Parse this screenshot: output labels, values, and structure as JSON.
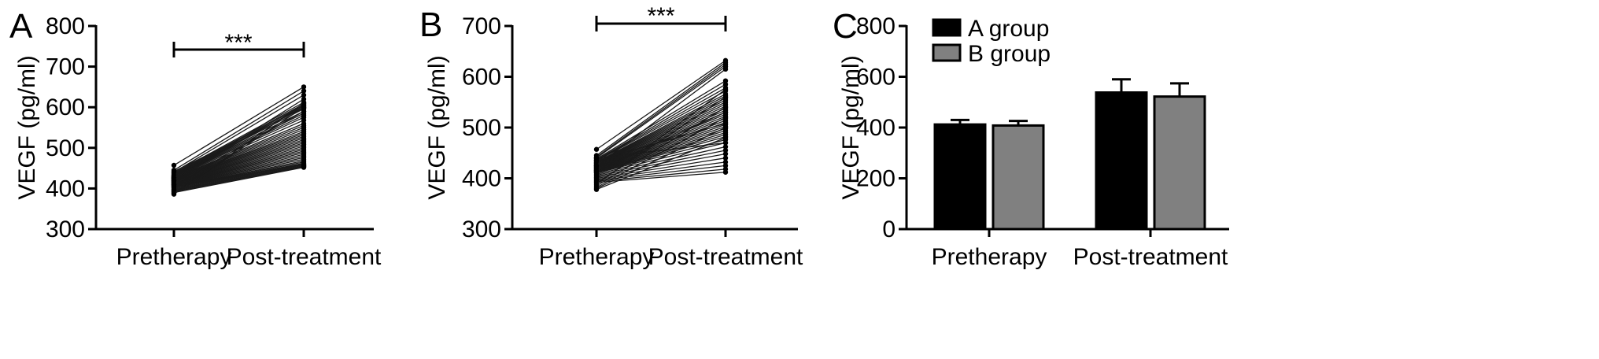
{
  "panels": [
    {
      "letter": "A",
      "chart_data": {
        "type": "line",
        "subtype": "paired before-after",
        "categories": [
          "Pretherapy",
          "Post-treatment"
        ],
        "ylabel": "VEGF (pg/ml)",
        "ylim": [
          300,
          800
        ],
        "yticks": [
          300,
          400,
          500,
          600,
          700,
          800
        ],
        "significance": "***",
        "series": [
          {
            "values": [
              457,
              650
            ]
          },
          {
            "values": [
              445,
              640
            ]
          },
          {
            "values": [
              440,
              630
            ]
          },
          {
            "values": [
              438,
              612
            ]
          },
          {
            "values": [
              436,
              608
            ]
          },
          {
            "values": [
              434,
              605
            ]
          },
          {
            "values": [
              433,
              600
            ]
          },
          {
            "values": [
              432,
              596
            ]
          },
          {
            "values": [
              431,
              590
            ]
          },
          {
            "values": [
              430,
              585
            ]
          },
          {
            "values": [
              429,
              580
            ]
          },
          {
            "values": [
              428,
              575
            ]
          },
          {
            "values": [
              427,
              568
            ]
          },
          {
            "values": [
              426,
              560
            ]
          },
          {
            "values": [
              425,
              555
            ]
          },
          {
            "values": [
              424,
              550
            ]
          },
          {
            "values": [
              423,
              545
            ]
          },
          {
            "values": [
              422,
              540
            ]
          },
          {
            "values": [
              421,
              536
            ]
          },
          {
            "values": [
              420,
              532
            ]
          },
          {
            "values": [
              419,
              528
            ]
          },
          {
            "values": [
              418,
              524
            ]
          },
          {
            "values": [
              417,
              520
            ]
          },
          {
            "values": [
              416,
              516
            ]
          },
          {
            "values": [
              415,
              512
            ]
          },
          {
            "values": [
              414,
              508
            ]
          },
          {
            "values": [
              413,
              504
            ]
          },
          {
            "values": [
              412,
              500
            ]
          },
          {
            "values": [
              411,
              496
            ]
          },
          {
            "values": [
              410,
              492
            ]
          },
          {
            "values": [
              409,
              488
            ]
          },
          {
            "values": [
              408,
              484
            ]
          },
          {
            "values": [
              407,
              480
            ]
          },
          {
            "values": [
              406,
              476
            ]
          },
          {
            "values": [
              405,
              472
            ]
          },
          {
            "values": [
              404,
              468
            ]
          },
          {
            "values": [
              403,
              465
            ]
          },
          {
            "values": [
              402,
              462
            ]
          },
          {
            "values": [
              400,
              460
            ]
          },
          {
            "values": [
              398,
              458
            ]
          },
          {
            "values": [
              396,
              456
            ]
          },
          {
            "values": [
              394,
              455
            ]
          },
          {
            "values": [
              392,
              453
            ]
          },
          {
            "values": [
              390,
              452
            ]
          },
          {
            "values": [
              388,
              600
            ]
          },
          {
            "values": [
              386,
              610
            ]
          },
          {
            "values": [
              425,
              603
            ]
          },
          {
            "values": [
              442,
              598
            ]
          },
          {
            "values": [
              420,
              620
            ]
          },
          {
            "values": [
              410,
              590
            ]
          }
        ]
      }
    },
    {
      "letter": "B",
      "chart_data": {
        "type": "line",
        "subtype": "paired before-after",
        "categories": [
          "Pretherapy",
          "Post-treatment"
        ],
        "ylabel": "VEGF (pg/ml)",
        "ylim": [
          300,
          700
        ],
        "yticks": [
          300,
          400,
          500,
          600,
          700
        ],
        "significance": "***",
        "series": [
          {
            "values": [
              457,
              632
            ]
          },
          {
            "values": [
              445,
              628
            ]
          },
          {
            "values": [
              442,
              624
            ]
          },
          {
            "values": [
              440,
              620
            ]
          },
          {
            "values": [
              438,
              592
            ]
          },
          {
            "values": [
              436,
              585
            ]
          },
          {
            "values": [
              435,
              578
            ]
          },
          {
            "values": [
              434,
              572
            ]
          },
          {
            "values": [
              432,
              566
            ]
          },
          {
            "values": [
              431,
              562
            ]
          },
          {
            "values": [
              430,
              558
            ]
          },
          {
            "values": [
              429,
              554
            ]
          },
          {
            "values": [
              428,
              550
            ]
          },
          {
            "values": [
              427,
              546
            ]
          },
          {
            "values": [
              426,
              542
            ]
          },
          {
            "values": [
              425,
              538
            ]
          },
          {
            "values": [
              424,
              534
            ]
          },
          {
            "values": [
              423,
              530
            ]
          },
          {
            "values": [
              422,
              526
            ]
          },
          {
            "values": [
              421,
              522
            ]
          },
          {
            "values": [
              420,
              518
            ]
          },
          {
            "values": [
              419,
              514
            ]
          },
          {
            "values": [
              418,
              510
            ]
          },
          {
            "values": [
              417,
              506
            ]
          },
          {
            "values": [
              416,
              502
            ]
          },
          {
            "values": [
              415,
              498
            ]
          },
          {
            "values": [
              414,
              494
            ]
          },
          {
            "values": [
              413,
              490
            ]
          },
          {
            "values": [
              412,
              486
            ]
          },
          {
            "values": [
              411,
              482
            ]
          },
          {
            "values": [
              410,
              476
            ]
          },
          {
            "values": [
              408,
              470
            ]
          },
          {
            "values": [
              406,
              462
            ]
          },
          {
            "values": [
              404,
              455
            ]
          },
          {
            "values": [
              402,
              448
            ]
          },
          {
            "values": [
              400,
              440
            ]
          },
          {
            "values": [
              398,
              432
            ]
          },
          {
            "values": [
              396,
              425
            ]
          },
          {
            "values": [
              394,
              418
            ]
          },
          {
            "values": [
              392,
              412
            ]
          },
          {
            "values": [
              390,
              560
            ]
          },
          {
            "values": [
              388,
              575
            ]
          },
          {
            "values": [
              385,
              540
            ]
          },
          {
            "values": [
              382,
              520
            ]
          },
          {
            "values": [
              380,
              500
            ]
          },
          {
            "values": [
              378,
              480
            ]
          },
          {
            "values": [
              440,
              470
            ]
          },
          {
            "values": [
              435,
              508
            ]
          },
          {
            "values": [
              425,
              615
            ]
          },
          {
            "values": [
              415,
              530
            ]
          }
        ]
      }
    },
    {
      "letter": "C",
      "chart_data": {
        "type": "bar",
        "categories": [
          "Pretherapy",
          "Post-treatment"
        ],
        "ylabel": "VEGF (pg/ml)",
        "ylim": [
          0,
          800
        ],
        "yticks": [
          0,
          200,
          400,
          600,
          800
        ],
        "legend_position": "top-left",
        "series": [
          {
            "name": "A group",
            "color": "#000000",
            "values": [
              412,
              538
            ],
            "errors": [
              18,
              52
            ]
          },
          {
            "name": "B group",
            "color": "#808080",
            "values": [
              408,
              522
            ],
            "errors": [
              18,
              52
            ]
          }
        ]
      }
    }
  ]
}
